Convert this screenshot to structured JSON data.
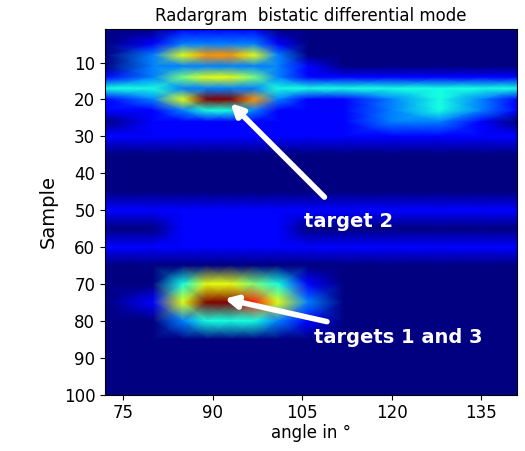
{
  "chart_data": {
    "type": "heatmap",
    "title": "Radargram  bistatic differential mode",
    "x_label": "angle in °",
    "y_label": "Sample",
    "x": [
      72,
      80,
      85,
      89,
      93,
      97,
      101,
      106,
      112,
      120,
      128,
      135,
      141
    ],
    "y": [
      1,
      5,
      8,
      11,
      14,
      17,
      20,
      23,
      26,
      30,
      35,
      40,
      45,
      50,
      55,
      60,
      65,
      70,
      75,
      80,
      85,
      90,
      95,
      100
    ],
    "cells": [
      [
        1,
        1,
        2,
        2,
        2,
        2,
        1,
        1,
        1,
        1,
        1,
        1,
        1
      ],
      [
        1,
        2,
        3,
        3,
        3,
        3,
        2,
        1,
        1,
        1,
        1,
        1,
        1
      ],
      [
        1,
        3,
        6,
        7,
        7,
        6,
        3,
        1,
        1,
        1,
        1,
        1,
        1
      ],
      [
        1,
        3,
        3,
        3,
        3,
        3,
        3,
        2,
        1,
        1,
        1,
        1,
        1
      ],
      [
        2,
        3,
        5,
        6,
        6,
        5,
        3,
        2,
        2,
        2,
        2,
        2,
        2
      ],
      [
        4,
        4,
        3,
        3,
        3,
        3,
        4,
        4,
        4,
        4,
        4,
        4,
        4
      ],
      [
        2,
        3,
        6,
        9,
        9,
        7,
        3,
        2,
        2,
        3,
        4,
        3,
        2
      ],
      [
        2,
        2,
        3,
        4,
        4,
        3,
        2,
        2,
        2,
        3,
        4,
        3,
        2
      ],
      [
        1,
        2,
        2,
        2,
        2,
        2,
        2,
        2,
        2,
        3,
        3,
        2,
        1
      ],
      [
        2,
        2,
        2,
        2,
        2,
        2,
        2,
        2,
        2,
        2,
        2,
        2,
        2
      ],
      [
        1,
        1,
        1,
        1,
        1,
        1,
        1,
        1,
        1,
        1,
        1,
        1,
        1
      ],
      [
        1,
        1,
        1,
        1,
        1,
        1,
        1,
        1,
        1,
        1,
        1,
        1,
        1
      ],
      [
        1,
        1,
        1,
        1,
        1,
        1,
        1,
        1,
        1,
        1,
        1,
        1,
        1
      ],
      [
        2,
        2,
        2,
        2,
        2,
        2,
        2,
        2,
        2,
        2,
        2,
        2,
        2
      ],
      [
        1,
        1,
        2,
        2,
        2,
        2,
        2,
        1,
        1,
        1,
        1,
        1,
        1
      ],
      [
        2,
        2,
        2,
        2,
        2,
        2,
        2,
        2,
        2,
        2,
        2,
        2,
        2
      ],
      [
        1,
        1,
        1,
        1,
        1,
        1,
        1,
        1,
        1,
        1,
        1,
        1,
        1
      ],
      [
        1,
        1,
        4,
        6,
        6,
        5,
        4,
        2,
        1,
        1,
        1,
        1,
        1
      ],
      [
        1,
        2,
        6,
        9,
        9,
        8,
        6,
        3,
        1,
        1,
        1,
        1,
        1
      ],
      [
        1,
        1,
        3,
        4,
        4,
        4,
        3,
        2,
        1,
        1,
        1,
        1,
        1
      ],
      [
        1,
        1,
        1,
        1,
        1,
        1,
        1,
        1,
        1,
        1,
        1,
        1,
        1
      ],
      [
        1,
        1,
        1,
        1,
        1,
        1,
        1,
        1,
        1,
        1,
        1,
        1,
        1
      ],
      [
        1,
        1,
        1,
        1,
        1,
        1,
        1,
        1,
        1,
        1,
        1,
        1,
        1
      ],
      [
        1,
        1,
        1,
        1,
        1,
        1,
        1,
        1,
        1,
        1,
        1,
        1,
        1
      ]
    ],
    "xlim": [
      72,
      141
    ],
    "ylim": [
      100,
      1
    ],
    "xticks": [
      75,
      90,
      105,
      120,
      135
    ],
    "yticks": [
      10,
      20,
      30,
      40,
      50,
      60,
      70,
      80,
      90,
      100
    ],
    "annotations": [
      {
        "text": "target 2",
        "x": 93,
        "y": 21
      },
      {
        "text": "targets 1 and 3",
        "x": 92,
        "y": 74
      }
    ]
  }
}
